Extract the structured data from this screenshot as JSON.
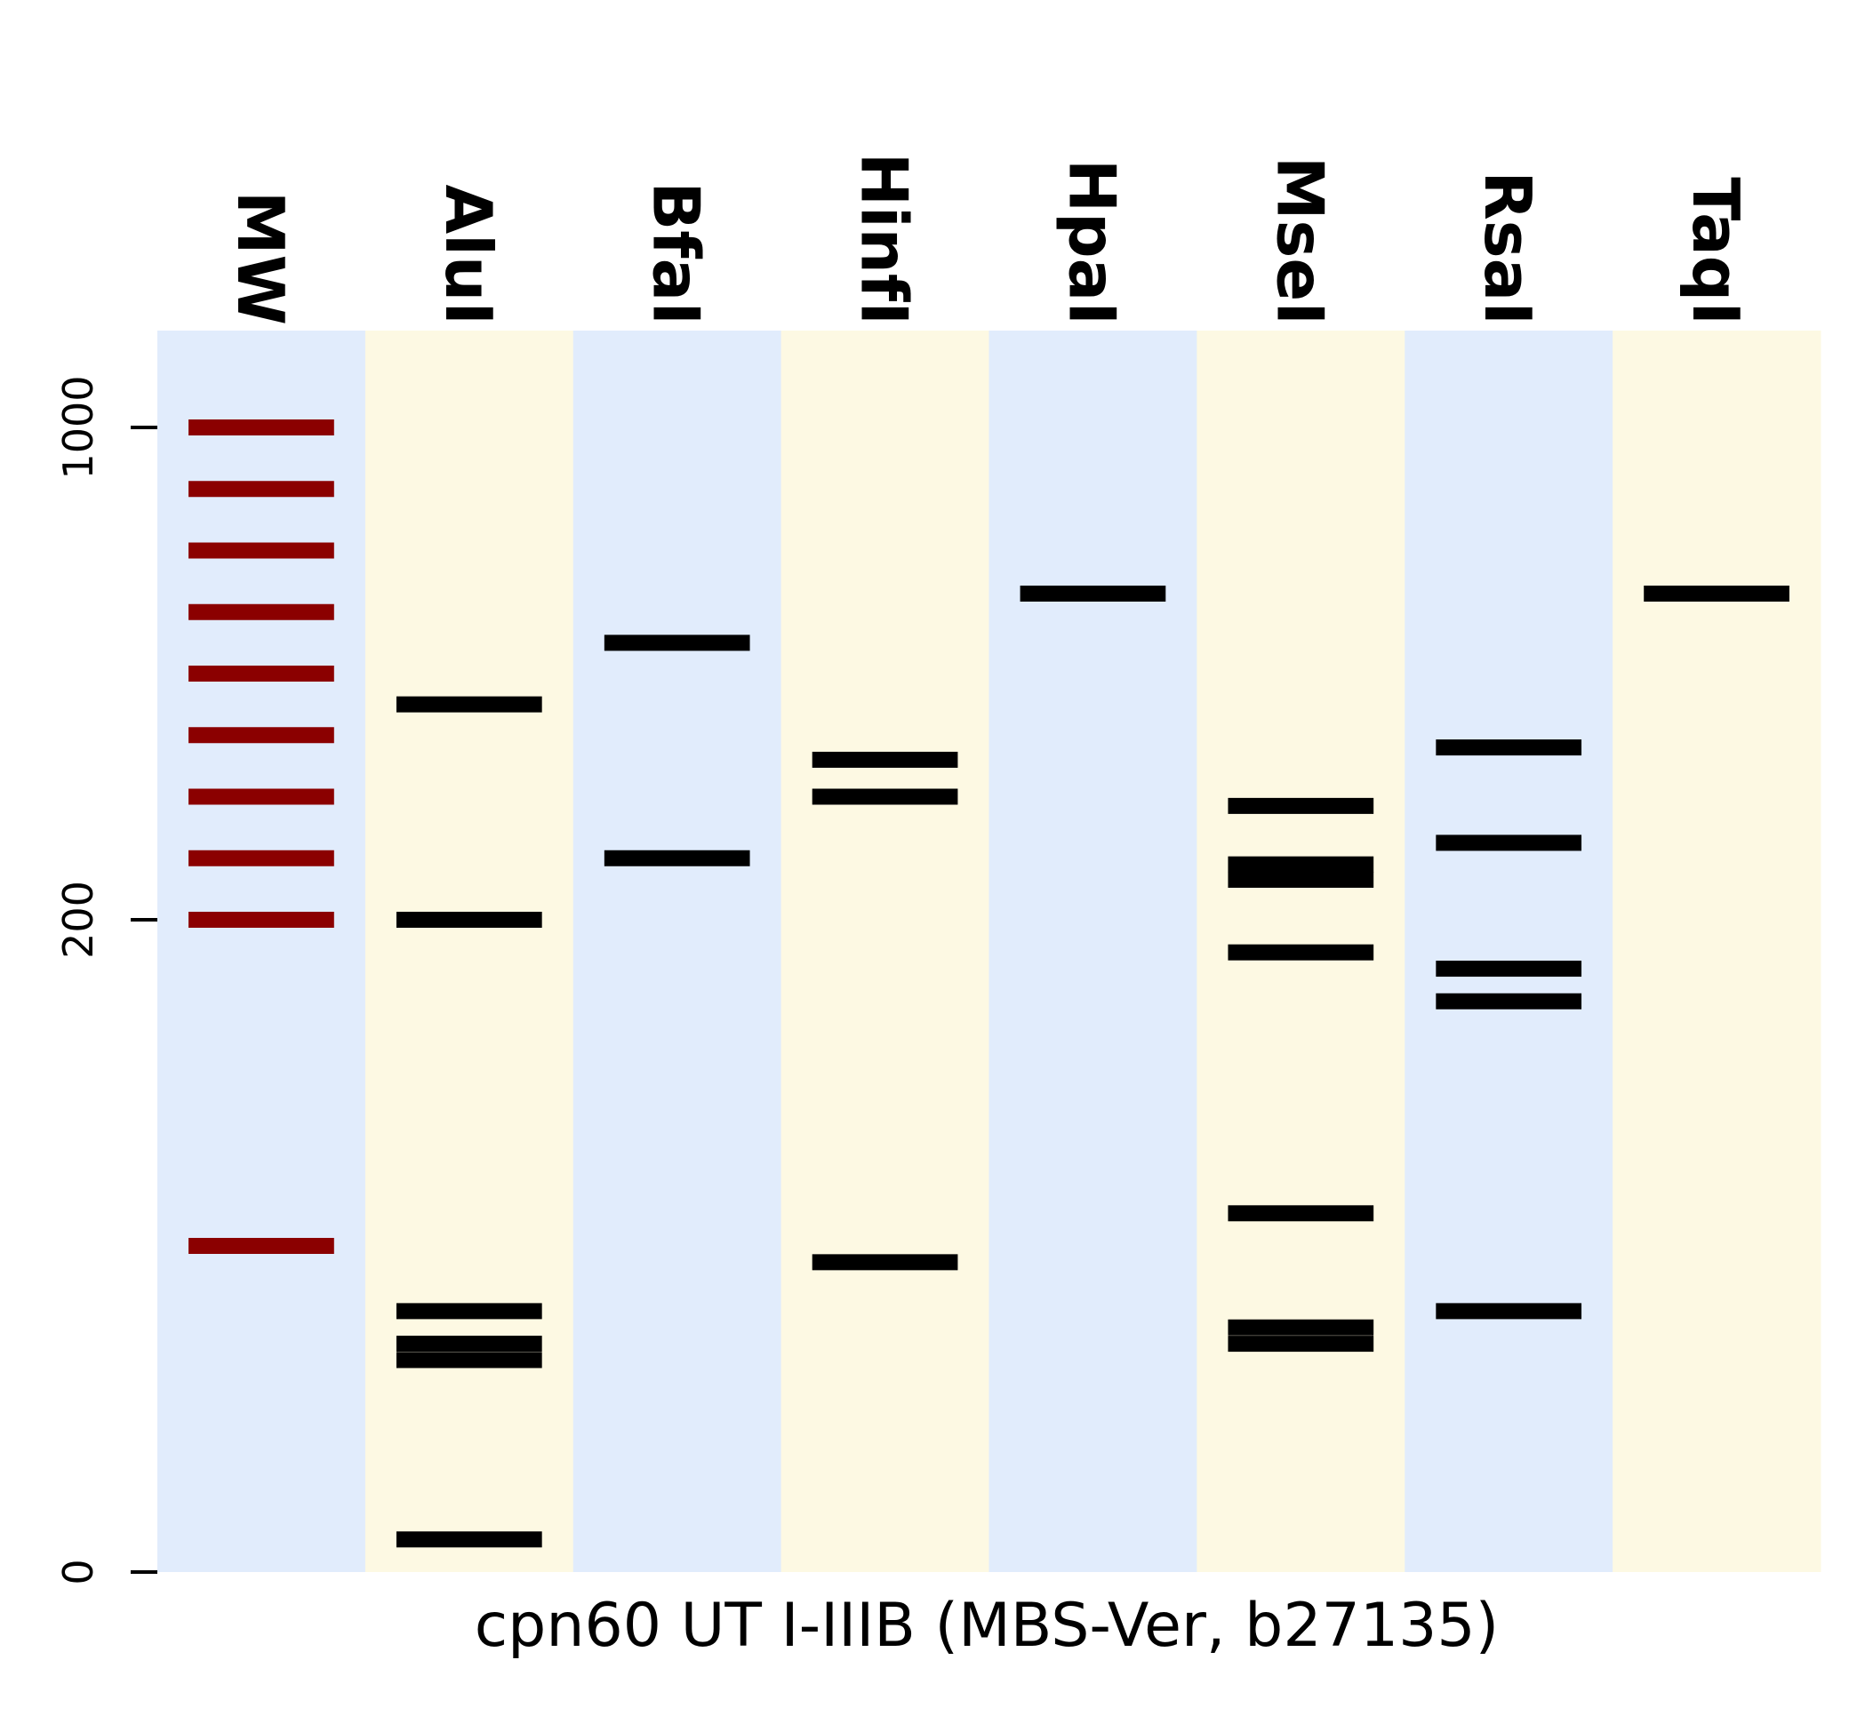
{
  "chart_data": {
    "type": "heatmap",
    "subtype": "simulated-restriction-gel",
    "title": "",
    "xlabel": "cpn60 UT I-IIIB (MBS-Ver, b27135)",
    "ylabel": "",
    "y_ticks": [
      {
        "label": "0",
        "value": 0
      },
      {
        "label": "200",
        "value": 200
      },
      {
        "label": "1000",
        "value": 1000
      }
    ],
    "lane_colors": [
      "#e1ecfc",
      "#fdf9e3"
    ],
    "marker_band_color": "#8b0000",
    "band_color": "#000000",
    "lanes": [
      {
        "name": "MW",
        "marker": true,
        "bands": [
          1000,
          900,
          800,
          700,
          600,
          500,
          400,
          300,
          200,
          100
        ]
      },
      {
        "name": "AluI",
        "bands": [
          550,
          200,
          80,
          70,
          65,
          10
        ]
      },
      {
        "name": "BfaI",
        "bands": [
          650,
          300
        ]
      },
      {
        "name": "HinfI",
        "bands": [
          460,
          400,
          95
        ]
      },
      {
        "name": "HpaI",
        "bands": [
          730
        ]
      },
      {
        "name": "MseI",
        "bands": [
          385,
          290,
          265,
          190,
          110,
          75,
          70
        ]
      },
      {
        "name": "RsaI",
        "bands": [
          480,
          325,
          185,
          175,
          80
        ]
      },
      {
        "name": "TaqI",
        "bands": [
          730
        ]
      }
    ]
  }
}
